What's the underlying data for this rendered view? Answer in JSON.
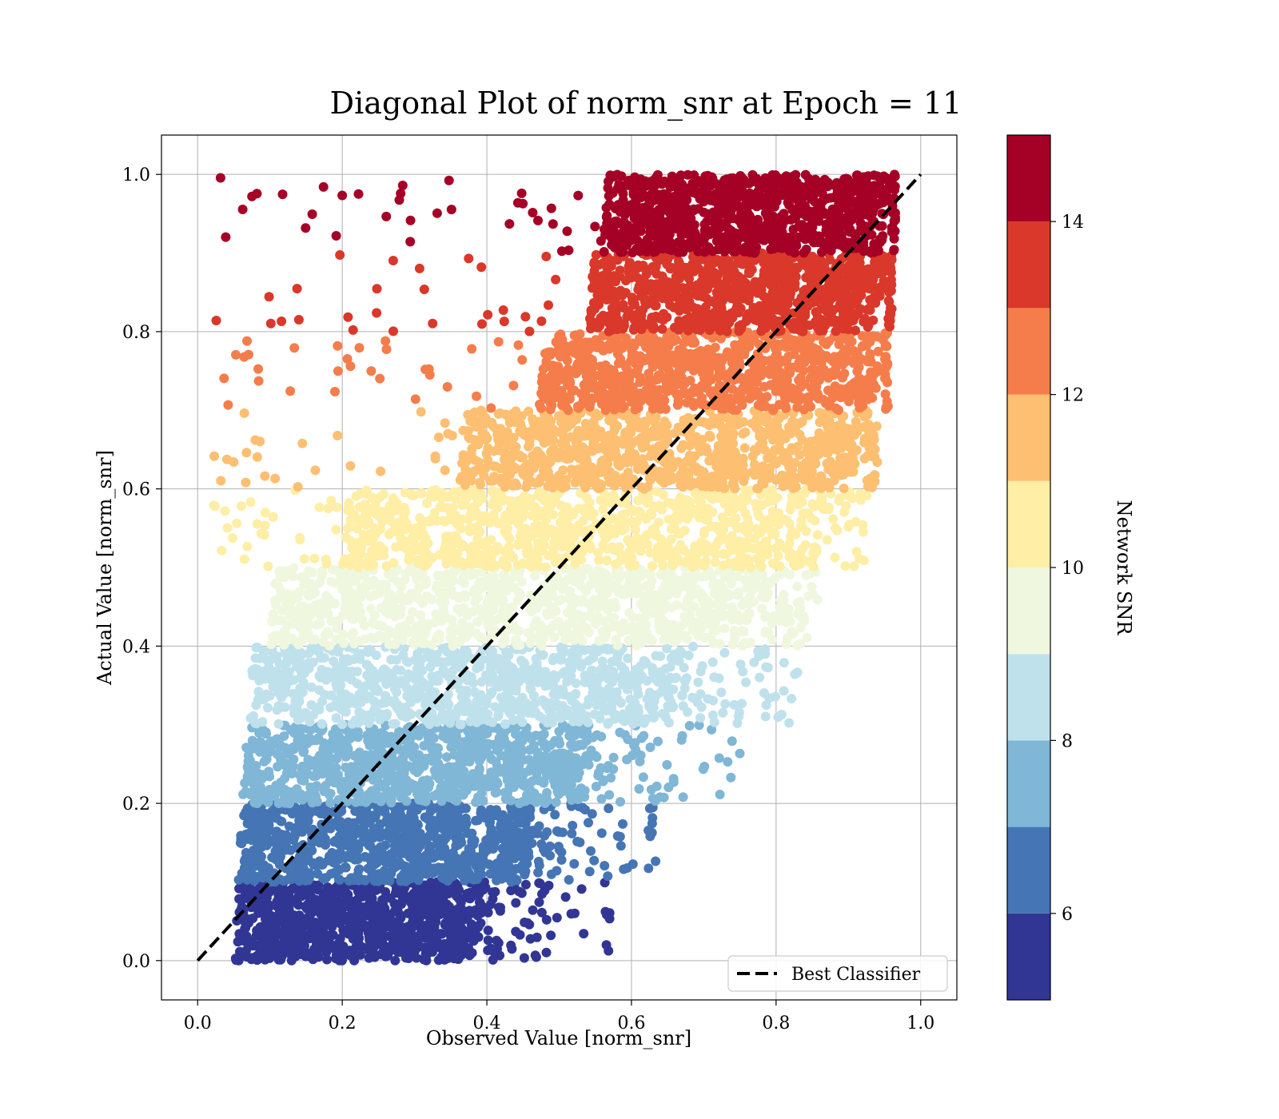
{
  "chart_data": {
    "type": "scatter",
    "title": "Diagonal Plot of norm_snr at Epoch = 11",
    "xlabel": "Observed Value [norm_snr]",
    "ylabel": "Actual Value [norm_snr]",
    "xlim": [
      -0.05,
      1.05
    ],
    "ylim": [
      -0.05,
      1.05
    ],
    "xticks": [
      0.0,
      0.2,
      0.4,
      0.6,
      0.8,
      1.0
    ],
    "yticks": [
      0.0,
      0.2,
      0.4,
      0.6,
      0.8,
      1.0
    ],
    "xtick_labels": [
      "0.0",
      "0.2",
      "0.4",
      "0.6",
      "0.8",
      "1.0"
    ],
    "ytick_labels": [
      "0.0",
      "0.2",
      "0.4",
      "0.6",
      "0.8",
      "1.0"
    ],
    "grid": true,
    "legend": {
      "placement": "lower-right",
      "entries": [
        "Best Classifier"
      ]
    },
    "reference_line": {
      "name": "Best Classifier",
      "style": "dashed",
      "color": "#000000",
      "x": [
        0.0,
        1.0
      ],
      "y": [
        0.0,
        1.0
      ]
    },
    "colorbar": {
      "label": "Network SNR",
      "range": [
        5,
        15
      ],
      "ticks": [
        6,
        8,
        10,
        12,
        14
      ],
      "tick_labels": [
        "6",
        "8",
        "10",
        "12",
        "14"
      ],
      "colors": [
        "#313695",
        "#4575b4",
        "#74add1",
        "#abd9e9",
        "#e0f3f8",
        "#ffffbf",
        "#fee090",
        "#fdae61",
        "#f46d43",
        "#d73027",
        "#a50026"
      ],
      "bands": [
        {
          "snr_range": [
            5,
            6
          ],
          "color": "#313695"
        },
        {
          "snr_range": [
            6,
            7
          ],
          "color": "#4575b4"
        },
        {
          "snr_range": [
            7,
            8
          ],
          "color": "#80b6d6"
        },
        {
          "snr_range": [
            8,
            9
          ],
          "color": "#bfe1ec"
        },
        {
          "snr_range": [
            9,
            10
          ],
          "color": "#eff7de"
        },
        {
          "snr_range": [
            10,
            11
          ],
          "color": "#feeea6"
        },
        {
          "snr_range": [
            11,
            12
          ],
          "color": "#fdbf71"
        },
        {
          "snr_range": [
            12,
            13
          ],
          "color": "#f57d4b"
        },
        {
          "snr_range": [
            13,
            14
          ],
          "color": "#d9382a"
        },
        {
          "snr_range": [
            14,
            15
          ],
          "color": "#a50026"
        }
      ]
    },
    "bands": [
      {
        "y_range": [
          0.0,
          0.1
        ],
        "x_core": [
          0.05,
          0.4
        ],
        "x_tail_max": 0.57,
        "color": "#313695"
      },
      {
        "y_range": [
          0.1,
          0.2
        ],
        "x_core": [
          0.055,
          0.47
        ],
        "x_tail_max": 0.64,
        "color": "#4575b4"
      },
      {
        "y_range": [
          0.2,
          0.3
        ],
        "x_core": [
          0.06,
          0.55
        ],
        "x_tail_max": 0.75,
        "color": "#80b6d6"
      },
      {
        "y_range": [
          0.3,
          0.4
        ],
        "x_core": [
          0.07,
          0.67
        ],
        "x_tail_max": 0.83,
        "color": "#bfe1ec"
      },
      {
        "y_range": [
          0.4,
          0.5
        ],
        "x_core": [
          0.1,
          0.78
        ],
        "x_tail_max": 0.86,
        "color": "#eff7de"
      },
      {
        "y_range": [
          0.5,
          0.6
        ],
        "x_core": [
          0.2,
          0.87
        ],
        "x_tail_max": 0.93,
        "color": "#feeea6"
      },
      {
        "y_range": [
          0.6,
          0.7
        ],
        "x_core": [
          0.36,
          0.92
        ],
        "x_tail_max": 0.94,
        "color": "#fdbf71"
      },
      {
        "y_range": [
          0.7,
          0.8
        ],
        "x_core": [
          0.47,
          0.95
        ],
        "x_tail_max": 0.95,
        "color": "#f57d4b"
      },
      {
        "y_range": [
          0.8,
          0.9
        ],
        "x_core": [
          0.54,
          0.955
        ],
        "x_tail_max": 0.96,
        "color": "#d9382a"
      },
      {
        "y_range": [
          0.9,
          1.0
        ],
        "x_core": [
          0.56,
          0.96
        ],
        "x_tail_max": 0.965,
        "color": "#a50026"
      }
    ]
  }
}
